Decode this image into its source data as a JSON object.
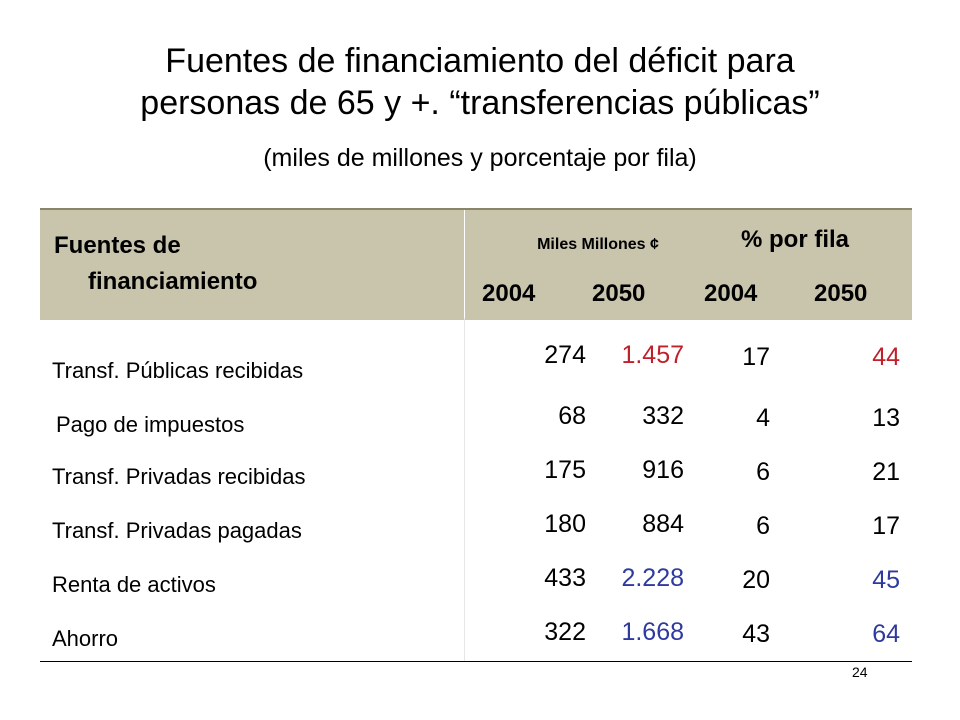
{
  "title_line1": "Fuentes de financiamiento del déficit para",
  "title_line2": "personas de 65 y +. “transferencias públicas”",
  "subtitle": "(miles de millones  y porcentaje por fila)",
  "header": {
    "fuentes_line1": "Fuentes de",
    "fuentes_line2": "financiamiento",
    "miles_label": "Miles Millones ¢",
    "pct_label": "% por fila",
    "year_a": "2004",
    "year_b": "2050",
    "year_c": "2004",
    "year_d": "2050"
  },
  "colors": {
    "header_bg": "#c9c4ac",
    "red": "#c0202a",
    "blue": "#2e3a9e",
    "black": "#000000"
  },
  "rows": [
    {
      "label": "Transf. Públicas recibidas",
      "m2004": "274",
      "m2050": "1.457",
      "p2004": "17",
      "p2050": "44",
      "color": "red"
    },
    {
      "label": "Pago de impuestos",
      "m2004": "68",
      "m2050": "332",
      "p2004": "4",
      "p2050": "13",
      "color": "black"
    },
    {
      "label": "Transf. Privadas recibidas",
      "m2004": "175",
      "m2050": "916",
      "p2004": "6",
      "p2050": "21",
      "color": "black"
    },
    {
      "label": "Transf. Privadas pagadas",
      "m2004": "180",
      "m2050": "884",
      "p2004": "6",
      "p2050": "17",
      "color": "black"
    },
    {
      "label": "Renta de activos",
      "m2004": "433",
      "m2050": "2.228",
      "p2004": "20",
      "p2050": "45",
      "color": "blue"
    },
    {
      "label": "Ahorro",
      "m2004": "322",
      "m2050": "1.668",
      "p2004": "43",
      "p2050": "64",
      "color": "blue"
    }
  ],
  "page_number": "24"
}
